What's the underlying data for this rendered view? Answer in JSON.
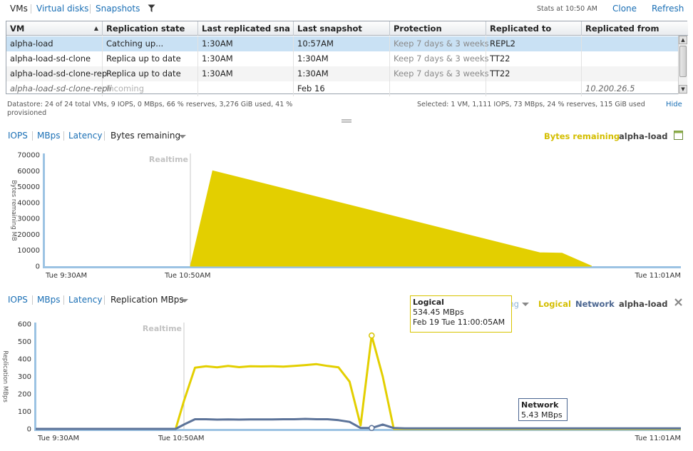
{
  "tabs": {
    "vms": "VMs",
    "virtual_disks": "Virtual disks",
    "snapshots": "Snapshots"
  },
  "icons": {
    "filter": "funnel-icon",
    "calendar": "calendar-icon",
    "close": "close-icon"
  },
  "stats_at": "Stats at 10:50 AM",
  "actions": {
    "clone": "Clone",
    "refresh": "Refresh"
  },
  "table": {
    "columns": [
      "VM",
      "Replication state",
      "Last replicated sna",
      "Last snapshot",
      "Protection",
      "Replicated to",
      "Replicated from"
    ],
    "rows": [
      {
        "vm": "alpha-load",
        "state": "Catching up...",
        "last_replicated": "1:30AM",
        "last_snapshot": "10:57AM",
        "protection": "Keep 7 days & 3 weeks",
        "replicated_to": "REPL2",
        "replicated_from": ""
      },
      {
        "vm": "alpha-load-sd-clone",
        "state": "Replica up to date",
        "last_replicated": "1:30AM",
        "last_snapshot": "1:30AM",
        "protection": "Keep 7 days & 3 weeks",
        "replicated_to": "TT22",
        "replicated_from": ""
      },
      {
        "vm": "alpha-load-sd-clone-rep",
        "state": "Replica up to date",
        "last_replicated": "1:30AM",
        "last_snapshot": "1:30AM",
        "protection": "Keep 7 days & 3 weeks",
        "replicated_to": "TT22",
        "replicated_from": ""
      },
      {
        "vm": "alpha-load-sd-clone-repli",
        "state": "Incoming",
        "last_replicated": "",
        "last_snapshot": "Feb 16",
        "protection": "",
        "replicated_to": "",
        "replicated_from": "10.200.26.5"
      }
    ]
  },
  "footer": {
    "datastore": "Datastore: 24 of 24 total VMs, 9 IOPS, 0 MBps, 66 % reserves, 3,276 GiB used, 41 %",
    "datastore_line2": "provisioned",
    "selected": "Selected: 1 VM, 1,111 IOPS, 73 MBps, 24 % reserves, 115 GiB used",
    "hide": "Hide"
  },
  "chart1_tabs": {
    "iops": "IOPS",
    "mbps": "MBps",
    "latency": "Latency",
    "current": "Bytes remaining"
  },
  "chart1_legend": {
    "series": "Bytes remaining",
    "vm": "alpha-load"
  },
  "chart2_tabs": {
    "iops": "IOPS",
    "mbps": "MBps",
    "latency": "Latency",
    "current": "Replication MBps"
  },
  "chart2_legend": {
    "outgoing": "Outgoing",
    "logical": "Logical",
    "network": "Network",
    "vm": "alpha-load"
  },
  "tooltip_logical": {
    "title": "Logical",
    "value": "534.45 MBps",
    "time": "Feb 19 Tue 11:00:05AM"
  },
  "tooltip_network": {
    "title": "Network",
    "value": "5.43 MBps"
  },
  "colors": {
    "yellow": "#e3cf00",
    "blue_line": "#5c7399",
    "link": "#1a6fb5"
  },
  "chart_data": [
    {
      "type": "area",
      "ylabel": "Bytes remaining MB",
      "ylim": [
        0,
        70000
      ],
      "yticks": [
        0,
        10000,
        20000,
        30000,
        40000,
        50000,
        60000,
        70000
      ],
      "xticks": [
        "Tue 9:30AM",
        "Tue 10:50AM",
        "Tue 11:01AM"
      ],
      "realtime_label": "Realtime",
      "series": [
        {
          "name": "Bytes remaining",
          "color": "#e3cf00",
          "x": [
            "10:50:00",
            "10:50:30",
            "10:57:50",
            "10:58:20",
            "10:59:00"
          ],
          "values": [
            0,
            60000,
            8500,
            8200,
            0
          ]
        }
      ]
    },
    {
      "type": "line",
      "ylabel": "Replication MBps",
      "ylim": [
        0,
        600
      ],
      "yticks": [
        0,
        100,
        200,
        300,
        400,
        500,
        600
      ],
      "xticks": [
        "Tue 9:30AM",
        "Tue 10:50AM",
        "Tue 11:01AM"
      ],
      "realtime_label": "Realtime",
      "series": [
        {
          "name": "Logical",
          "color": "#e3cf00",
          "values": [
            0,
            0,
            0,
            0,
            0,
            0,
            0,
            0,
            0,
            0,
            0,
            0,
            0,
            0,
            0,
            0,
            0,
            0,
            160,
            350,
            358,
            352,
            360,
            353,
            358,
            357,
            358,
            356,
            360,
            365,
            370,
            360,
            352,
            270,
            20,
            534,
            300,
            0,
            0,
            0,
            0,
            0,
            0,
            0,
            0,
            0,
            0,
            0,
            0,
            0,
            0,
            0,
            0,
            0,
            0,
            0,
            0,
            0,
            0,
            0,
            0,
            0,
            0,
            0
          ]
        },
        {
          "name": "Network",
          "color": "#5c7399",
          "values": [
            0,
            0,
            0,
            0,
            0,
            0,
            0,
            0,
            0,
            0,
            0,
            0,
            0,
            0,
            0,
            0,
            0,
            0,
            25,
            55,
            55,
            53,
            54,
            53,
            54,
            54,
            54,
            55,
            55,
            57,
            55,
            55,
            50,
            40,
            5,
            5,
            25,
            5,
            3,
            3,
            3,
            3,
            3,
            3,
            3,
            3,
            3,
            3,
            3,
            3,
            3,
            3,
            3,
            3,
            3,
            3,
            3,
            3,
            3,
            3,
            3,
            3,
            3,
            3
          ]
        }
      ]
    }
  ]
}
